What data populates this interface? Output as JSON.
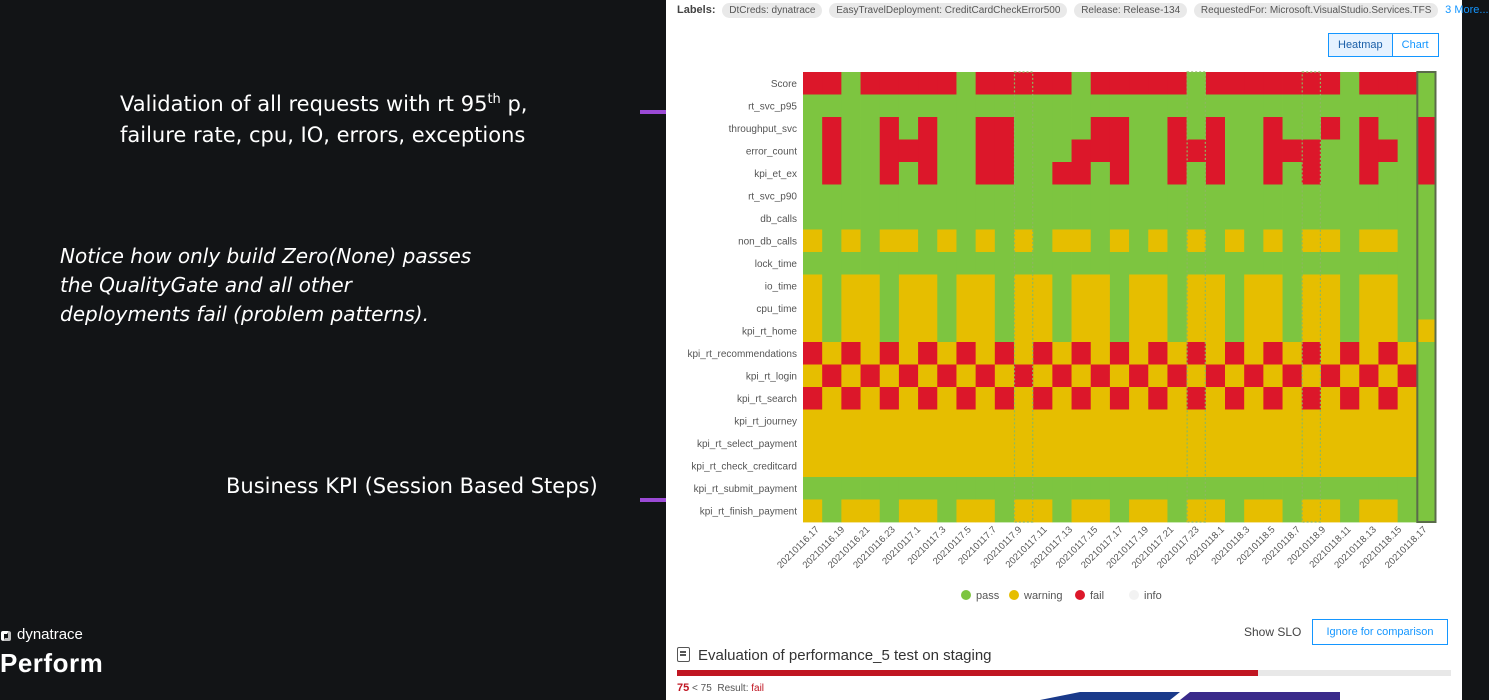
{
  "notes": {
    "validation_line1": "Validation of all requests with rt 95",
    "validation_sup": "th",
    "validation_line1_end": " p,",
    "validation_line2": "failure rate, cpu, IO, errors, exceptions",
    "notice_line1": "Notice how only build Zero(None) passes",
    "notice_line2": "the QualityGate and all other",
    "notice_line3": "deployments fail (problem patterns).",
    "business": "Business KPI (Session Based Steps)"
  },
  "brand": {
    "logo_icon": "dynatrace-logo-icon",
    "name": "dynatrace",
    "event": "Perform"
  },
  "labels": {
    "title": "Labels:",
    "chips": [
      "DtCreds: dynatrace",
      "EasyTravelDeployment: CreditCardCheckError500",
      "Release: Release-134",
      "RequestedFor: Microsoft.VisualStudio.Services.TFS"
    ],
    "more": "3 More..."
  },
  "view_toggle": {
    "heatmap": "Heatmap",
    "chart": "Chart",
    "active": "Heatmap"
  },
  "chart_data": {
    "type": "heatmap",
    "rows": [
      "Score",
      "rt_svc_p95",
      "throughput_svc",
      "error_count",
      "kpi_et_ex",
      "rt_svc_p90",
      "db_calls",
      "non_db_calls",
      "lock_time",
      "io_time",
      "cpu_time",
      "kpi_rt_home",
      "kpi_rt_recommendations",
      "kpi_rt_login",
      "kpi_rt_search",
      "kpi_rt_journey",
      "kpi_rt_select_payment",
      "kpi_rt_check_creditcard",
      "kpi_rt_submit_payment",
      "kpi_rt_finish_payment"
    ],
    "x_tick_labels": [
      "20210116.17",
      "20210116.19",
      "20210116.21",
      "20210116.23",
      "20210117.1",
      "20210117.3",
      "20210117.5",
      "20210117.7",
      "20210117.9",
      "20210117.11",
      "20210117.13",
      "20210117.15",
      "20210117.17",
      "20210117.19",
      "20210117.21",
      "20210117.23",
      "20210118.1",
      "20210118.3",
      "20210118.5",
      "20210118.7",
      "20210118.9",
      "20210118.11",
      "20210118.13",
      "20210118.15",
      "20210118.17"
    ],
    "columns": 33,
    "status_codes": "P=pass, W=warning, F=fail",
    "cells": [
      "FFPFFFFFPFFFFFPFFFFFPFFFFFFFPFFFP",
      "PPPPPPPPPPPPPPPPPPPPPPPPPPPPPPPPP",
      "PFPPFPFPPFFPPPPFFPPFPFPPFPPFPFPPF",
      "PFPPFFFPPFFPPPFFFPPFFFPPFFFPPFFPF",
      "PFPPFPFPPFFPPFFPFPPFPFPPFPFPPFPPF",
      "PPPPPPPPPPPPPPPPPPPPPPPPPPPPPPPPP",
      "PPPPPPPPPPPPPPPPPPPPPPPPPPPPPPPPP",
      "WPWPWWPWPWPWPWWPWPWPWPWPWPWWPWWPP",
      "PPPPPPPPPPPPPPPPPPPPPPPPPPPPPPPPP",
      "WPWWPWWPWWPWWPWWPWWPWWPWWPWWPWWPP",
      "WPWWPWWPWWPWWPWWPWWPWWPWWPWWPWWPP",
      "WPWWPWWPWWPWWPWWPWWPWWPWWPWWPWWPW",
      "FWFWFWFWFWFWFWFWFWFWFWFWFWFWFWFWP",
      "WFWFWFWFWFWFWFWFWFWFWFWFWFWFWFWFP",
      "FWFWFWFWFWFWFWFWFWFWFWFWFWFWFWFWP",
      "WWWWWWWWWWWWWWWWWWWWWWWWWWWWWWWWP",
      "WWWWWWWWWWWWWWWWWWWWWWWWWWWWWWWWP",
      "WWWWWWWWWWWWWWWWWWWWWWWWWWWWWWWWP",
      "PPPPPPPPPPPPPPPPPPPPPPPPPPPPPPPPP",
      "WPWWPWWPWWPWWPWWPWWPWWPWWPWWPWWPP"
    ],
    "highlighted_columns": [
      11,
      20,
      26,
      32
    ],
    "legend": [
      {
        "name": "pass",
        "color": "#7dc540"
      },
      {
        "name": "warning",
        "color": "#e6be00"
      },
      {
        "name": "fail",
        "color": "#dc172a"
      },
      {
        "name": "info",
        "color": "#f2f2f2"
      }
    ]
  },
  "actions": {
    "show_slo": "Show SLO",
    "ignore": "Ignore for comparison"
  },
  "evaluation": {
    "title": "Evaluation of performance_5 test on staging",
    "score": "75",
    "threshold": "< 75",
    "result_label": "Result:",
    "result": "fail",
    "progress_fraction": 0.75
  },
  "colors": {
    "pass": "#7dc540",
    "warning": "#e6be00",
    "fail": "#dc172a",
    "bracket": "#9b4ad6",
    "accent": "#1496ff"
  }
}
